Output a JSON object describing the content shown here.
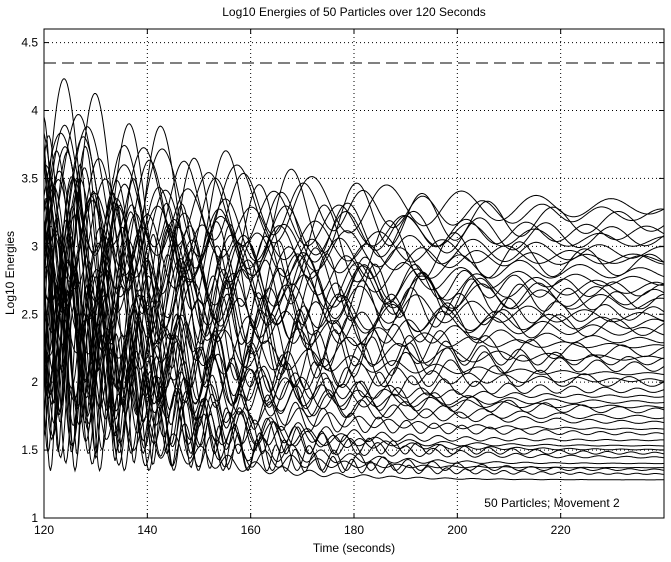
{
  "chart_data": {
    "type": "line",
    "title": "Log10 Energies of 50 Particles over 120 Seconds",
    "xlabel": "Time (seconds)",
    "ylabel": "Log10 Energies",
    "xlim": [
      120,
      240
    ],
    "ylim": [
      1,
      4.6
    ],
    "xticks": [
      120,
      140,
      160,
      180,
      200,
      220
    ],
    "yticks": [
      1,
      1.5,
      2,
      2.5,
      3,
      3.5,
      4,
      4.5
    ],
    "grid": true,
    "grid_style": "dotted",
    "annotation": "50 Particles; Movement 2",
    "reference_line": {
      "y": 4.35,
      "style": "dashed"
    },
    "line_color": "#000000",
    "series_count": 50,
    "series_final_values": [
      1.28,
      1.32,
      1.35,
      1.37,
      1.4,
      1.44,
      1.47,
      1.5,
      1.53,
      1.57,
      1.61,
      1.65,
      1.69,
      1.73,
      1.77,
      1.81,
      1.85,
      1.89,
      1.93,
      1.97,
      2.01,
      2.05,
      2.09,
      2.13,
      2.17,
      2.21,
      2.25,
      2.29,
      2.33,
      2.37,
      2.41,
      2.45,
      2.49,
      2.53,
      2.57,
      2.61,
      2.65,
      2.69,
      2.73,
      2.77,
      2.81,
      2.86,
      2.9,
      2.95,
      3.0,
      3.05,
      3.1,
      3.16,
      3.22,
      3.29
    ]
  }
}
